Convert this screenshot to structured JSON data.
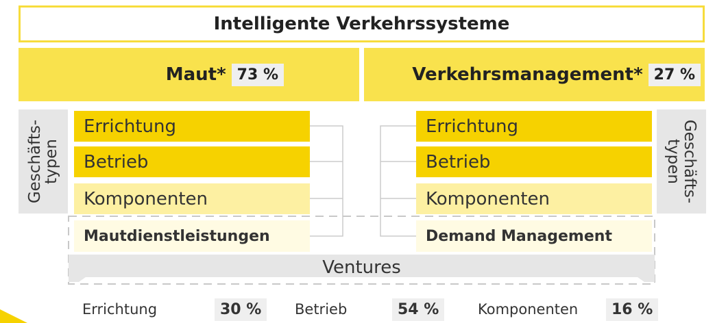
{
  "title": "Intelligente Verkehrssysteme",
  "segments": [
    {
      "label": "Maut*",
      "share": "73 %",
      "side_label": [
        "Geschäfts-",
        "typen"
      ],
      "rows": [
        "Errichtung",
        "Betrieb",
        "Komponenten"
      ],
      "service": "Mautdienstleistungen"
    },
    {
      "label": "Verkehrsmanagement*",
      "share": "27 %",
      "side_label": [
        "Geschäfts-",
        "typen"
      ],
      "rows": [
        "Errichtung",
        "Betrieb",
        "Komponenten"
      ],
      "service": "Demand Management"
    }
  ],
  "ventures": "Ventures",
  "breakdown": [
    {
      "label": "Errichtung",
      "share": "30 %"
    },
    {
      "label": "Betrieb",
      "share": "54 %"
    },
    {
      "label": "Komponenten",
      "share": "16 %"
    }
  ]
}
